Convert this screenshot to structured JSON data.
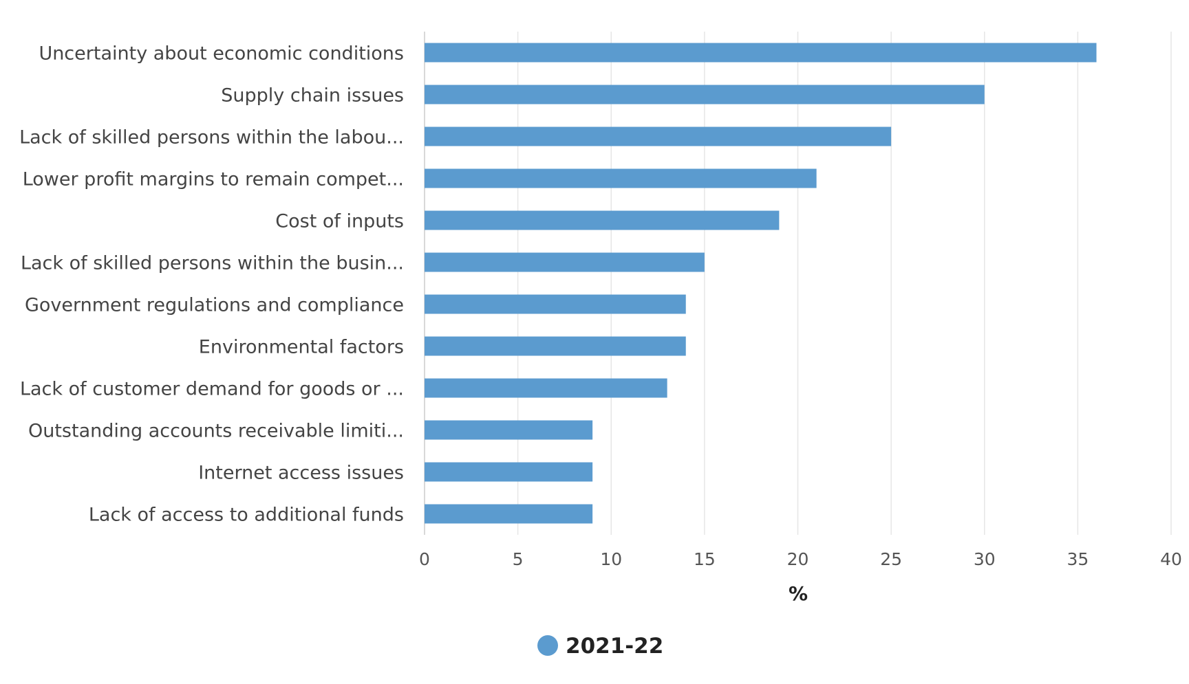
{
  "chart_data": {
    "type": "bar",
    "orientation": "horizontal",
    "categories": [
      "Uncertainty about economic conditions",
      "Supply chain issues",
      "Lack of skilled persons within the labou...",
      "Lower profit margins to remain compet...",
      "Cost of inputs",
      "Lack of skilled persons within the busin...",
      "Government regulations and compliance",
      "Environmental factors",
      "Lack of customer demand for goods or ...",
      "Outstanding accounts receivable limiti...",
      "Internet access issues",
      "Lack of access to additional funds"
    ],
    "series": [
      {
        "name": "2021-22",
        "values": [
          36,
          30,
          25,
          21,
          19,
          15,
          14,
          14,
          13,
          9,
          9,
          9
        ],
        "color": "#5b9bcf"
      }
    ],
    "xlabel": "%",
    "xlim": [
      0,
      40
    ],
    "xticks": [
      "0",
      "5",
      "10",
      "15",
      "20",
      "25",
      "30",
      "35",
      "40"
    ],
    "grid": "vertical",
    "legend_position": "bottom-center",
    "colors": {
      "bar": "#5b9bcf",
      "grid": "#e6e6e6",
      "axis": "#cccccc",
      "category_text": "#444444",
      "tick_text": "#555555",
      "axis_title_text": "#222222"
    }
  }
}
